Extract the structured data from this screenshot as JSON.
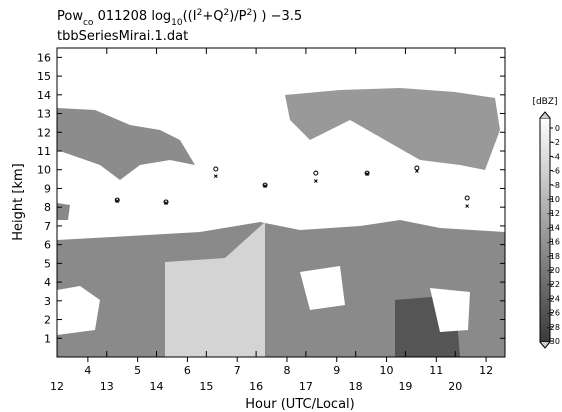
{
  "chart_data": {
    "type": "scatter",
    "title_parts": [
      "Pow",
      "co",
      " 011208  log",
      "10",
      "((I",
      "2",
      "+Q",
      "2",
      ")/P",
      "2",
      ") )  −3.5"
    ],
    "subtitle": "tbbSeriesMirai.1.dat",
    "xlabel": "Hour (UTC/Local)",
    "ylabel": "Height [km]",
    "xlim": [
      12,
      21
    ],
    "xticks": [
      12,
      13,
      14,
      15,
      16,
      17,
      18,
      19,
      20
    ],
    "x2lim": [
      3.38,
      12.38
    ],
    "x2ticks": [
      4,
      5,
      6,
      7,
      8,
      9,
      10,
      11,
      12
    ],
    "ylim": [
      0,
      16.5
    ],
    "yticks": [
      1,
      2,
      3,
      4,
      5,
      6,
      7,
      8,
      9,
      10,
      11,
      12,
      13,
      14,
      15,
      16
    ],
    "series": [
      {
        "marker": "circle",
        "color": "#000000",
        "x": [
          13.21,
          14.19,
          15.19,
          16.18,
          17.2,
          18.23,
          19.23,
          20.24
        ],
        "values": [
          8.38,
          8.28,
          10.04,
          9.18,
          9.82,
          9.82,
          10.09,
          8.49
        ]
      },
      {
        "marker": "x",
        "color": "#000000",
        "x": [
          13.21,
          14.19,
          15.19,
          16.18,
          17.2,
          18.23,
          19.23,
          20.24
        ],
        "values": [
          8.33,
          8.22,
          9.66,
          9.13,
          9.4,
          9.77,
          9.93,
          8.06
        ]
      }
    ],
    "colorbar": {
      "label": "[dBZ]",
      "lim": [
        -30,
        0
      ],
      "ticks": [
        0,
        -2,
        -4,
        -6,
        -8,
        -10,
        -12,
        -14,
        -16,
        -18,
        -20,
        -22,
        -24,
        -26,
        -28,
        -30
      ]
    }
  }
}
